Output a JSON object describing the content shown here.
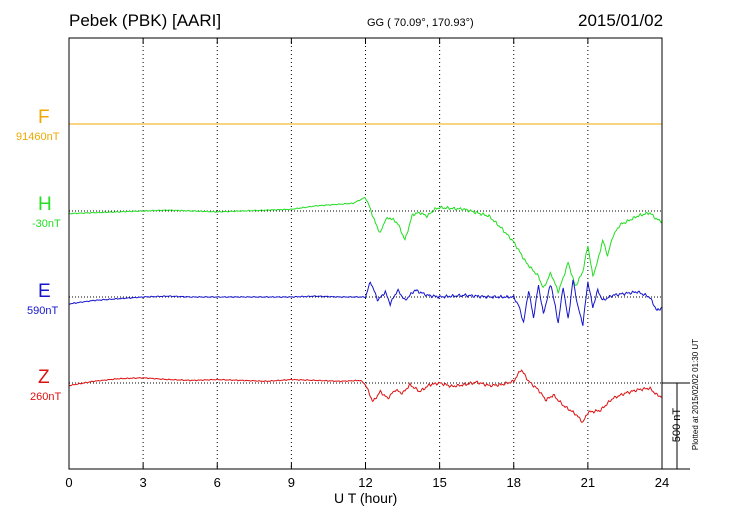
{
  "header": {
    "station": "Pebek (PBK)  [AARI]",
    "coords": "GG ( 70.09°, 170.93°)",
    "date": "2015/01/02"
  },
  "footer": {
    "plotted": "Plotted at 2015/02/02 01:30 UT"
  },
  "chart_data": {
    "type": "line",
    "xlabel": "U T (hour)",
    "xlim": [
      0,
      24
    ],
    "xticks": [
      0,
      3,
      6,
      9,
      12,
      15,
      18,
      21,
      24
    ],
    "scale_bar": {
      "label": "500 nT",
      "nT": 500
    },
    "grid": true,
    "colors": {
      "F": "#f0a800",
      "H": "#22dd22",
      "E": "#1515cc",
      "Z": "#dd1111"
    },
    "series": [
      {
        "name": "F",
        "baseline_label": "91460nT",
        "points": [
          [
            0,
            0
          ],
          [
            24,
            0
          ]
        ]
      },
      {
        "name": "H",
        "baseline_label": "-30nT",
        "points": [
          [
            0,
            -15
          ],
          [
            1,
            -10
          ],
          [
            2,
            -5
          ],
          [
            3,
            0
          ],
          [
            4,
            5
          ],
          [
            5,
            0
          ],
          [
            6,
            -5
          ],
          [
            7,
            0
          ],
          [
            8,
            5
          ],
          [
            9,
            10
          ],
          [
            10,
            30
          ],
          [
            10.5,
            35
          ],
          [
            11,
            40
          ],
          [
            11.5,
            45
          ],
          [
            12,
            80
          ],
          [
            12.2,
            10
          ],
          [
            12.4,
            -70
          ],
          [
            12.6,
            -130
          ],
          [
            12.8,
            -50
          ],
          [
            13,
            -40
          ],
          [
            13.3,
            -70
          ],
          [
            13.6,
            -170
          ],
          [
            13.9,
            -20
          ],
          [
            14.2,
            -10
          ],
          [
            14.5,
            -30
          ],
          [
            14.8,
            10
          ],
          [
            15,
            20
          ],
          [
            15.5,
            15
          ],
          [
            16,
            10
          ],
          [
            16.5,
            -10
          ],
          [
            17,
            -30
          ],
          [
            17.5,
            -100
          ],
          [
            18,
            -180
          ],
          [
            18.5,
            -300
          ],
          [
            19,
            -380
          ],
          [
            19.2,
            -450
          ],
          [
            19.5,
            -360
          ],
          [
            19.8,
            -470
          ],
          [
            20,
            -390
          ],
          [
            20.2,
            -300
          ],
          [
            20.5,
            -440
          ],
          [
            20.8,
            -350
          ],
          [
            21,
            -200
          ],
          [
            21.2,
            -380
          ],
          [
            21.4,
            -290
          ],
          [
            21.6,
            -170
          ],
          [
            21.8,
            -260
          ],
          [
            22,
            -150
          ],
          [
            22.3,
            -80
          ],
          [
            22.6,
            -60
          ],
          [
            23,
            -30
          ],
          [
            23.5,
            -10
          ],
          [
            23.8,
            -50
          ],
          [
            24,
            -60
          ]
        ]
      },
      {
        "name": "E",
        "baseline_label": "590nT",
        "points": [
          [
            0,
            -40
          ],
          [
            1,
            -20
          ],
          [
            2,
            -10
          ],
          [
            3,
            0
          ],
          [
            4,
            5
          ],
          [
            5,
            0
          ],
          [
            6,
            0
          ],
          [
            7,
            0
          ],
          [
            8,
            0
          ],
          [
            9,
            0
          ],
          [
            10,
            5
          ],
          [
            11,
            0
          ],
          [
            12,
            0
          ],
          [
            12.2,
            90
          ],
          [
            12.5,
            -20
          ],
          [
            12.8,
            30
          ],
          [
            13,
            -40
          ],
          [
            13.3,
            40
          ],
          [
            13.6,
            -20
          ],
          [
            14,
            40
          ],
          [
            14.5,
            10
          ],
          [
            15,
            0
          ],
          [
            16,
            10
          ],
          [
            17,
            0
          ],
          [
            18,
            0
          ],
          [
            18.2,
            -50
          ],
          [
            18.4,
            -150
          ],
          [
            18.6,
            40
          ],
          [
            18.8,
            -120
          ],
          [
            19,
            70
          ],
          [
            19.2,
            -100
          ],
          [
            19.5,
            80
          ],
          [
            19.8,
            -150
          ],
          [
            20,
            60
          ],
          [
            20.2,
            -130
          ],
          [
            20.4,
            100
          ],
          [
            20.6,
            -60
          ],
          [
            20.8,
            -160
          ],
          [
            21,
            90
          ],
          [
            21.2,
            -60
          ],
          [
            21.4,
            40
          ],
          [
            21.6,
            -20
          ],
          [
            22,
            10
          ],
          [
            22.5,
            20
          ],
          [
            23,
            30
          ],
          [
            23.5,
            0
          ],
          [
            23.8,
            -80
          ],
          [
            24,
            -60
          ]
        ]
      },
      {
        "name": "Z",
        "baseline_label": "260nT",
        "points": [
          [
            0,
            -15
          ],
          [
            1,
            10
          ],
          [
            2,
            25
          ],
          [
            3,
            30
          ],
          [
            4,
            20
          ],
          [
            5,
            15
          ],
          [
            6,
            20
          ],
          [
            7,
            15
          ],
          [
            8,
            10
          ],
          [
            9,
            20
          ],
          [
            10,
            15
          ],
          [
            11,
            10
          ],
          [
            11.8,
            15
          ],
          [
            12,
            -10
          ],
          [
            12.3,
            -110
          ],
          [
            12.6,
            -50
          ],
          [
            12.9,
            -90
          ],
          [
            13.2,
            -40
          ],
          [
            13.5,
            -60
          ],
          [
            13.8,
            -10
          ],
          [
            14.2,
            -50
          ],
          [
            14.6,
            -10
          ],
          [
            15,
            0
          ],
          [
            15.5,
            -20
          ],
          [
            16,
            -10
          ],
          [
            16.5,
            5
          ],
          [
            17,
            -15
          ],
          [
            17.5,
            -10
          ],
          [
            18,
            10
          ],
          [
            18.3,
            80
          ],
          [
            18.6,
            10
          ],
          [
            19,
            -40
          ],
          [
            19.3,
            -100
          ],
          [
            19.6,
            -70
          ],
          [
            20,
            -130
          ],
          [
            20.5,
            -180
          ],
          [
            20.8,
            -230
          ],
          [
            21,
            -170
          ],
          [
            21.5,
            -160
          ],
          [
            22,
            -90
          ],
          [
            22.5,
            -60
          ],
          [
            23,
            -40
          ],
          [
            23.5,
            -30
          ],
          [
            23.8,
            -70
          ],
          [
            24,
            -80
          ]
        ]
      }
    ]
  }
}
